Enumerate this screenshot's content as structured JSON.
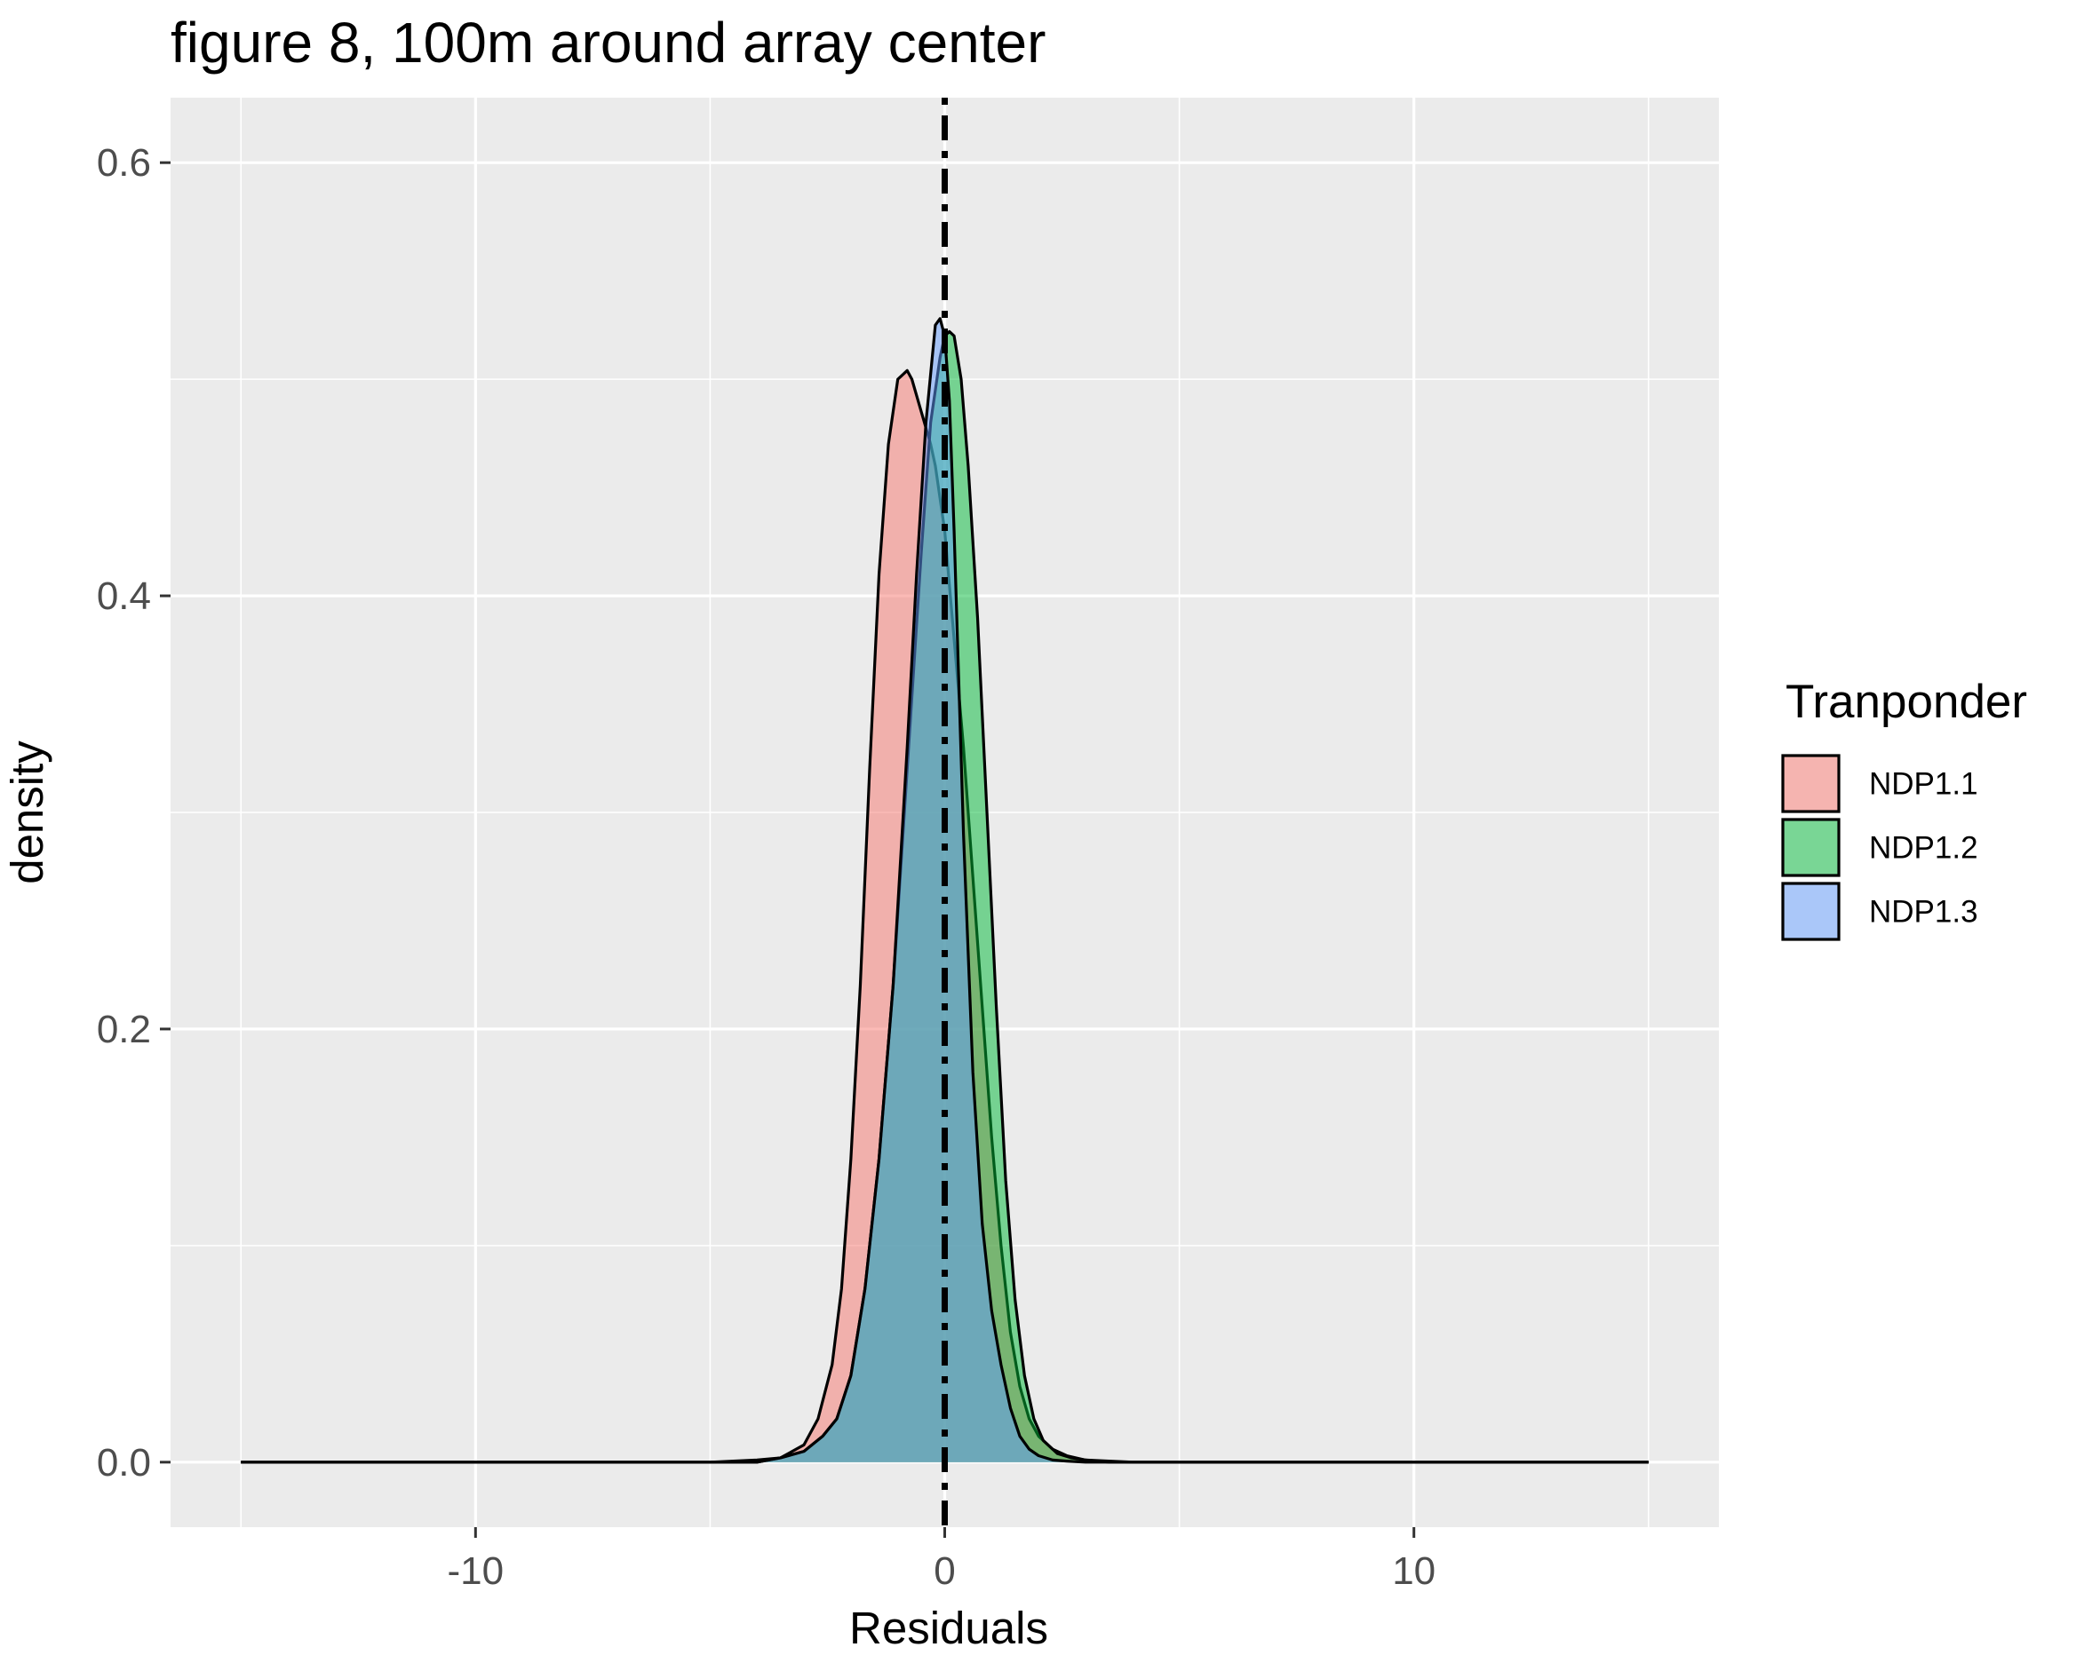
{
  "chart_data": {
    "type": "area",
    "title": "figure 8, 100m around array center",
    "xlabel": "Residuals",
    "ylabel": "density",
    "xlim": [
      -16.5,
      16.5
    ],
    "ylim": [
      -0.03,
      0.63
    ],
    "x_ticks": [
      -10,
      0,
      10
    ],
    "x_tick_labels": [
      "-10",
      "0",
      "10"
    ],
    "y_ticks": [
      0.0,
      0.2,
      0.4,
      0.6
    ],
    "y_tick_labels": [
      "0.0",
      "0.2",
      "0.4",
      "0.6"
    ],
    "grid": true,
    "panel_background": "#ebebeb",
    "reference_line": {
      "x": 0,
      "style": "dotdash",
      "color": "#000000"
    },
    "legend": {
      "title": "Tranponder",
      "position": "right"
    },
    "series": [
      {
        "name": "NDP1.1",
        "color": "#F8766D",
        "x": [
          -15,
          -5,
          -4,
          -3.5,
          -3,
          -2.7,
          -2.4,
          -2.2,
          -2.0,
          -1.8,
          -1.6,
          -1.4,
          -1.2,
          -1.0,
          -0.8,
          -0.7,
          -0.5,
          -0.3,
          -0.2,
          0.0,
          0.2,
          0.4,
          0.6,
          0.8,
          1.0,
          1.2,
          1.4,
          1.6,
          1.8,
          2.0,
          2.3,
          2.6,
          3.0,
          3.5,
          4,
          15
        ],
        "y": [
          0,
          0,
          0.001,
          0.002,
          0.008,
          0.02,
          0.045,
          0.08,
          0.14,
          0.22,
          0.32,
          0.41,
          0.47,
          0.5,
          0.504,
          0.5,
          0.485,
          0.47,
          0.46,
          0.43,
          0.38,
          0.33,
          0.27,
          0.21,
          0.15,
          0.1,
          0.06,
          0.035,
          0.02,
          0.012,
          0.006,
          0.003,
          0.001,
          0.0005,
          0,
          0
        ]
      },
      {
        "name": "NDP1.2",
        "color": "#00BA38",
        "x": [
          -15,
          -4,
          -3.5,
          -3,
          -2.6,
          -2.3,
          -2.0,
          -1.7,
          -1.4,
          -1.1,
          -0.8,
          -0.5,
          -0.3,
          -0.1,
          0.0,
          0.1,
          0.2,
          0.35,
          0.5,
          0.7,
          0.9,
          1.1,
          1.3,
          1.5,
          1.7,
          1.9,
          2.1,
          2.4,
          2.7,
          3.0,
          3.5,
          15
        ],
        "y": [
          0,
          0,
          0.002,
          0.005,
          0.012,
          0.02,
          0.04,
          0.08,
          0.14,
          0.22,
          0.32,
          0.42,
          0.48,
          0.51,
          0.52,
          0.522,
          0.52,
          0.5,
          0.46,
          0.39,
          0.3,
          0.21,
          0.13,
          0.075,
          0.04,
          0.02,
          0.01,
          0.004,
          0.002,
          0.001,
          0,
          0
        ]
      },
      {
        "name": "NDP1.3",
        "color": "#619CFF",
        "x": [
          -15,
          -4,
          -3.5,
          -3,
          -2.6,
          -2.3,
          -2.0,
          -1.7,
          -1.4,
          -1.1,
          -0.8,
          -0.6,
          -0.4,
          -0.2,
          -0.1,
          0.0,
          0.1,
          0.2,
          0.3,
          0.4,
          0.6,
          0.8,
          1.0,
          1.2,
          1.4,
          1.6,
          1.8,
          2.0,
          2.3,
          2.6,
          3.0,
          15
        ],
        "y": [
          0,
          0,
          0.002,
          0.005,
          0.012,
          0.02,
          0.04,
          0.08,
          0.14,
          0.22,
          0.33,
          0.41,
          0.48,
          0.525,
          0.528,
          0.52,
          0.49,
          0.43,
          0.36,
          0.29,
          0.18,
          0.11,
          0.07,
          0.045,
          0.025,
          0.012,
          0.006,
          0.003,
          0.001,
          0.0005,
          0,
          0
        ]
      }
    ]
  }
}
